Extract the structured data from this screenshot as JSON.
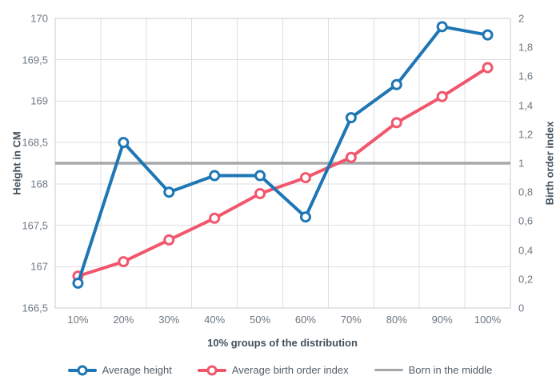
{
  "chart": {
    "left_axis": {
      "title": "Height in CM",
      "ticks": [
        "170",
        "169,5",
        "169",
        "168,5",
        "168",
        "167,5",
        "167",
        "166,5"
      ]
    },
    "right_axis": {
      "title": "Birth order index",
      "ticks": [
        "2",
        "1,8",
        "1,6",
        "1,4",
        "1,2",
        "1",
        "0,8",
        "0,6",
        "0,4",
        "0,2",
        "0"
      ]
    },
    "x_axis": {
      "title": "10% groups of the distribution",
      "labels": [
        "10%",
        "20%",
        "30%",
        "40%",
        "50%",
        "60%",
        "70%",
        "80%",
        "90%",
        "100%"
      ]
    }
  },
  "chart_data": {
    "type": "line",
    "title": "",
    "xlabel": "10% groups of the distribution",
    "ylabel_left": "Height in CM",
    "ylabel_right": "Birth order index",
    "categories": [
      "10%",
      "20%",
      "30%",
      "40%",
      "50%",
      "60%",
      "70%",
      "80%",
      "90%",
      "100%"
    ],
    "series": [
      {
        "name": "Average height",
        "axis": "left",
        "color": "#1e76b4",
        "marker": true,
        "values": [
          166.8,
          168.5,
          167.9,
          168.1,
          168.1,
          167.6,
          168.8,
          169.2,
          169.9,
          169.8
        ]
      },
      {
        "name": "Average birth order index",
        "axis": "right",
        "color": "#f1566c",
        "marker": true,
        "values": [
          0.22,
          0.32,
          0.47,
          0.62,
          0.79,
          0.9,
          1.04,
          1.28,
          1.46,
          1.66
        ]
      },
      {
        "name": "Born in the middle",
        "axis": "right",
        "color": "#a5a8aa",
        "marker": false,
        "reference_value": 1
      }
    ],
    "left_ylim": [
      166.5,
      170
    ],
    "right_ylim": [
      0,
      2
    ],
    "grid": true,
    "legend_position": "bottom"
  },
  "colors": {
    "height_line": "#1e76b4",
    "birth_order_line": "#f1566c",
    "reference_line": "#a5a8aa",
    "gridline": "#dcdfe2",
    "plot_border": "#c9ced3",
    "tick_text": "#6d7780",
    "axis_title_text": "#41505c",
    "legend_text": "#545f69",
    "background": "#ffffff"
  }
}
